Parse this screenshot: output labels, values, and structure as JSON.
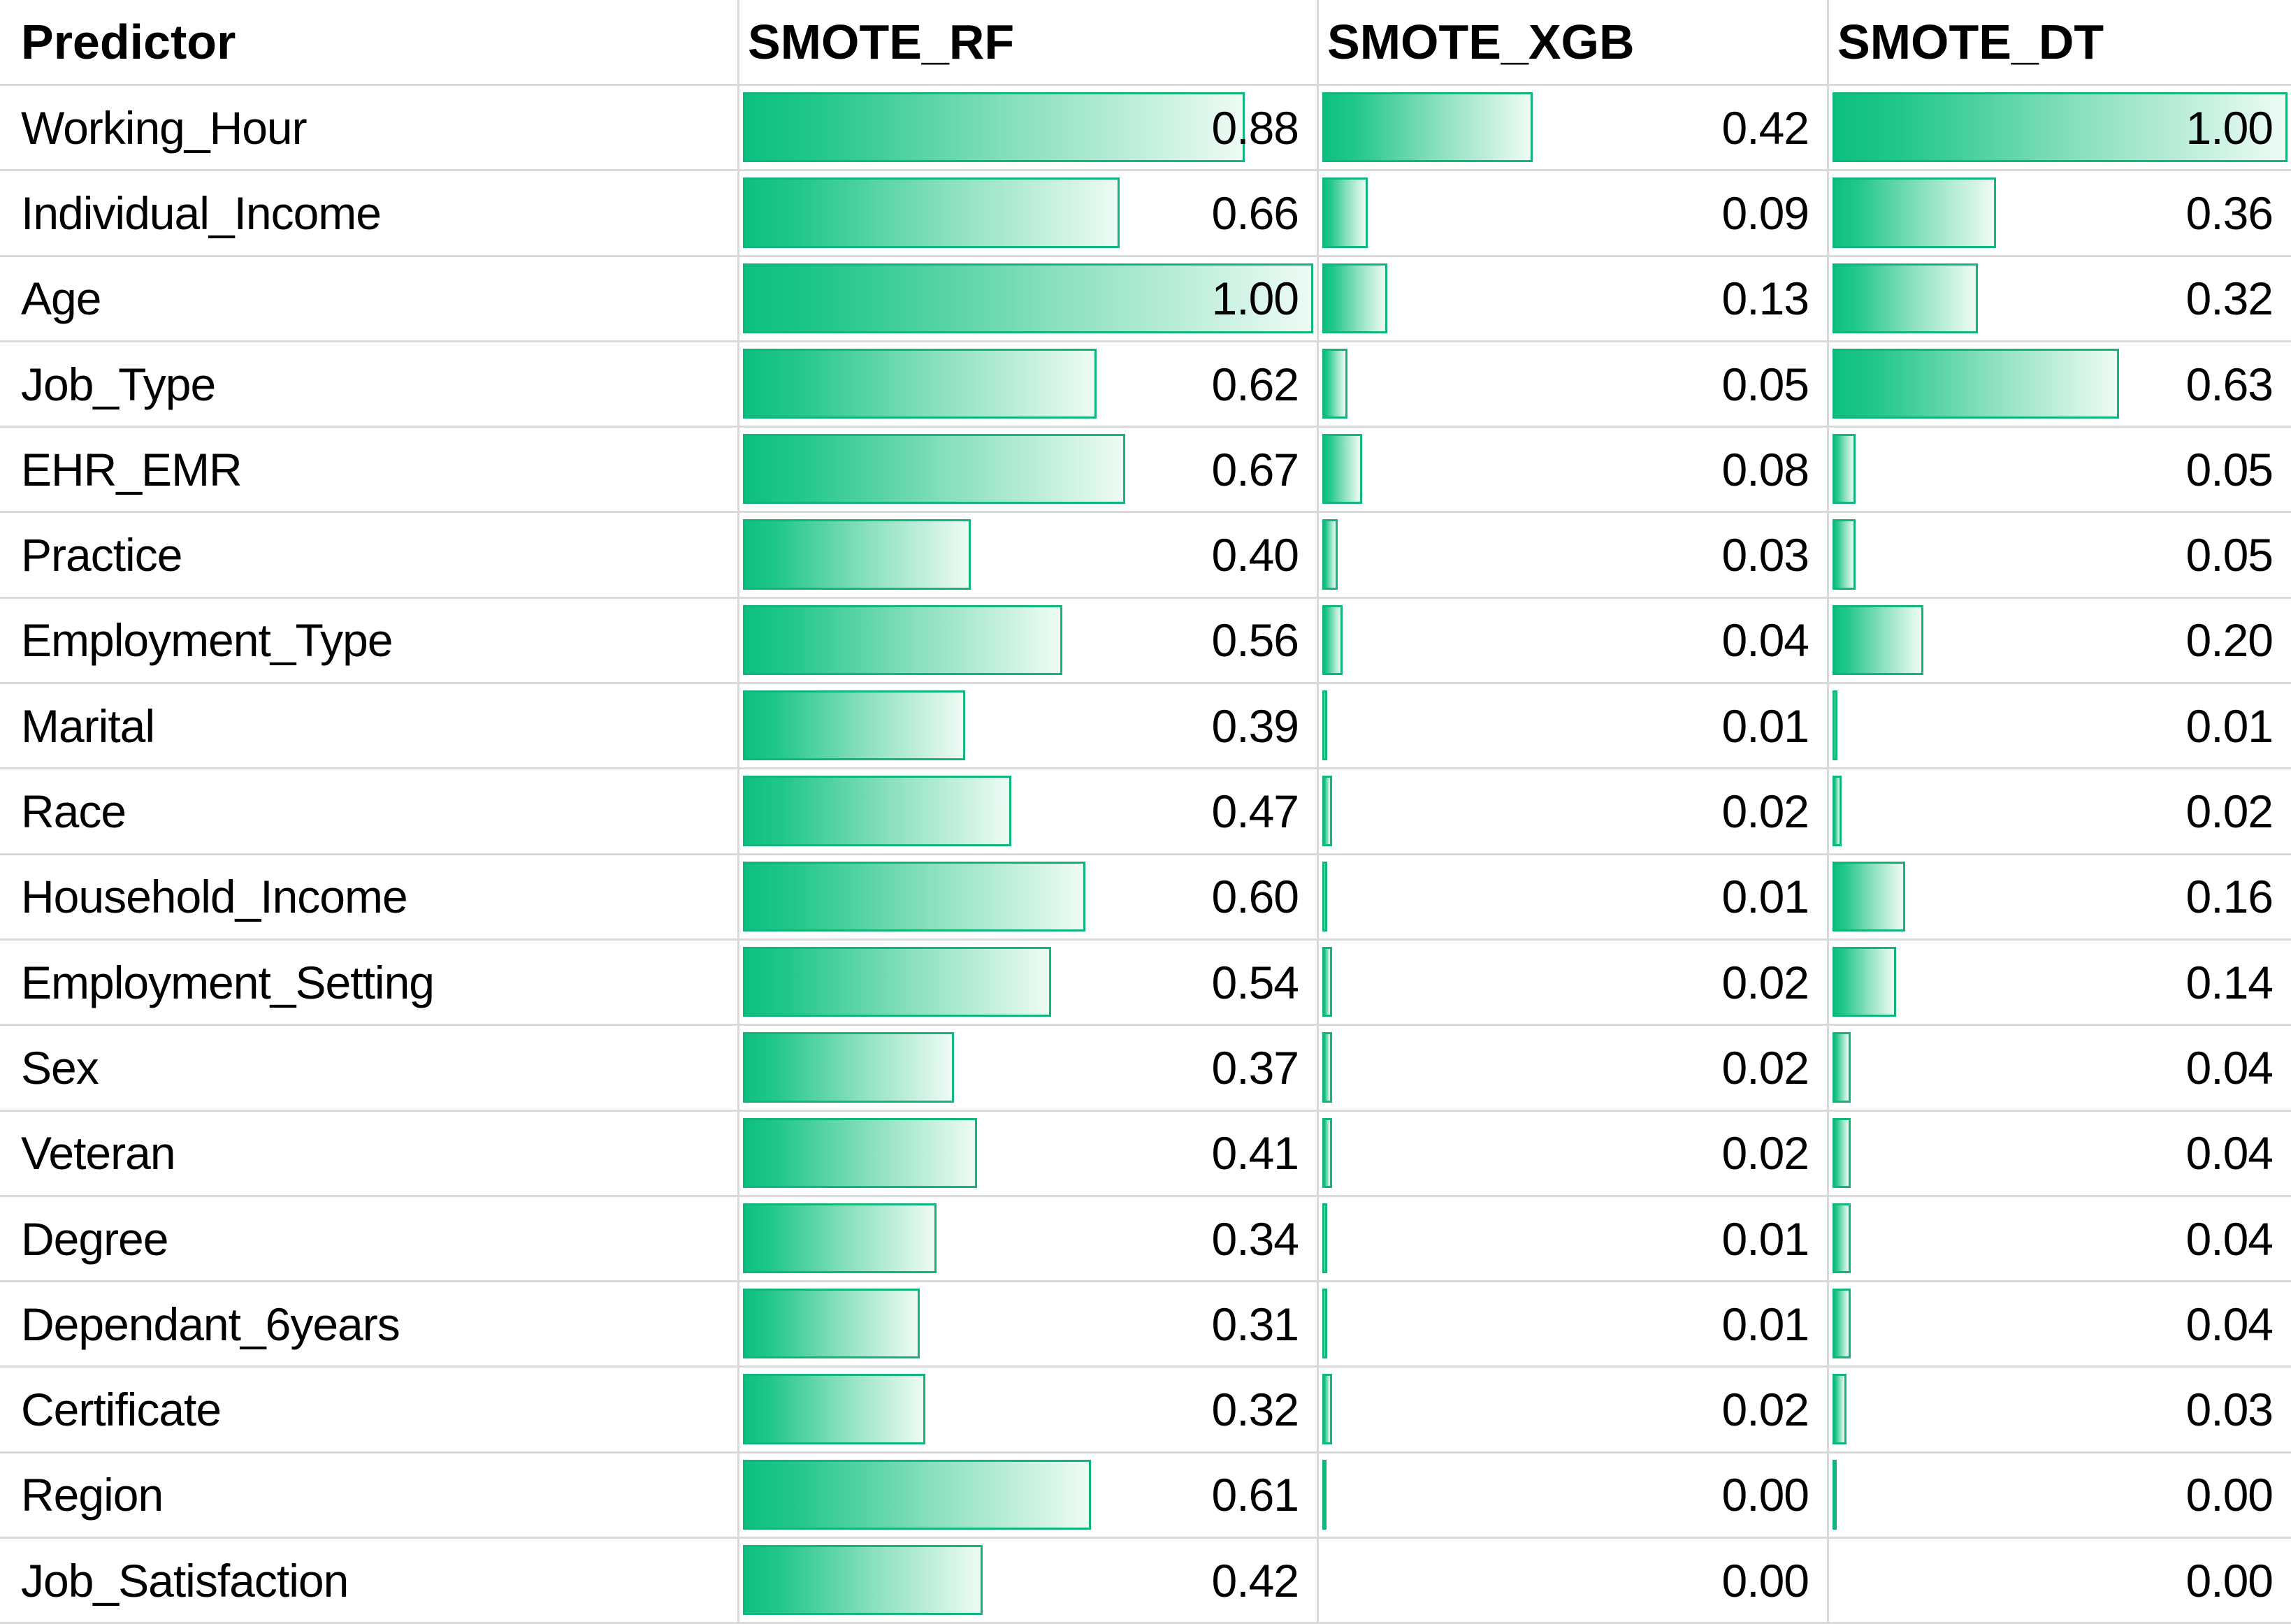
{
  "chart_data": {
    "type": "table",
    "title": "",
    "description": "Predictor importance table with in-cell gradient data bars, one bar column per model",
    "columns": [
      "Predictor",
      "SMOTE_RF",
      "SMOTE_XGB",
      "SMOTE_DT"
    ],
    "value_range": [
      0,
      1
    ],
    "bar_scale_max": 1.0,
    "value_format": "2-decimals",
    "colors": {
      "bar_fill_start": "#0cc080",
      "bar_fill_end": "#eefbf5",
      "bar_border": "#11b679",
      "gridline": "#d9d9d9",
      "text": "#000000"
    },
    "rows": [
      {
        "predictor": "Working_Hour",
        "rf": 0.88,
        "xgb": 0.42,
        "dt": 1.0
      },
      {
        "predictor": "Individual_Income",
        "rf": 0.66,
        "xgb": 0.09,
        "dt": 0.36
      },
      {
        "predictor": "Age",
        "rf": 1.0,
        "xgb": 0.13,
        "dt": 0.32
      },
      {
        "predictor": "Job_Type",
        "rf": 0.62,
        "xgb": 0.05,
        "dt": 0.63
      },
      {
        "predictor": "EHR_EMR",
        "rf": 0.67,
        "xgb": 0.08,
        "dt": 0.05
      },
      {
        "predictor": "Practice",
        "rf": 0.4,
        "xgb": 0.03,
        "dt": 0.05
      },
      {
        "predictor": "Employment_Type",
        "rf": 0.56,
        "xgb": 0.04,
        "dt": 0.2
      },
      {
        "predictor": "Marital",
        "rf": 0.39,
        "xgb": 0.01,
        "dt": 0.01
      },
      {
        "predictor": "Race",
        "rf": 0.47,
        "xgb": 0.02,
        "dt": 0.02
      },
      {
        "predictor": "Household_Income",
        "rf": 0.6,
        "xgb": 0.01,
        "dt": 0.16
      },
      {
        "predictor": "Employment_Setting",
        "rf": 0.54,
        "xgb": 0.02,
        "dt": 0.14
      },
      {
        "predictor": "Sex",
        "rf": 0.37,
        "xgb": 0.02,
        "dt": 0.04
      },
      {
        "predictor": "Veteran",
        "rf": 0.41,
        "xgb": 0.02,
        "dt": 0.04
      },
      {
        "predictor": "Degree",
        "rf": 0.34,
        "xgb": 0.01,
        "dt": 0.04
      },
      {
        "predictor": "Dependant_6years",
        "rf": 0.31,
        "xgb": 0.01,
        "dt": 0.04
      },
      {
        "predictor": "Certificate",
        "rf": 0.32,
        "xgb": 0.02,
        "dt": 0.03
      },
      {
        "predictor": "Region",
        "rf": 0.61,
        "xgb": 0.0,
        "dt": 0.0,
        "xgb_bar": 0.004,
        "dt_bar": 0.004
      },
      {
        "predictor": "Job_Satisfaction",
        "rf": 0.42,
        "xgb": 0.0,
        "dt": 0.0,
        "xgb_bar": 0,
        "dt_bar": 0
      }
    ]
  }
}
